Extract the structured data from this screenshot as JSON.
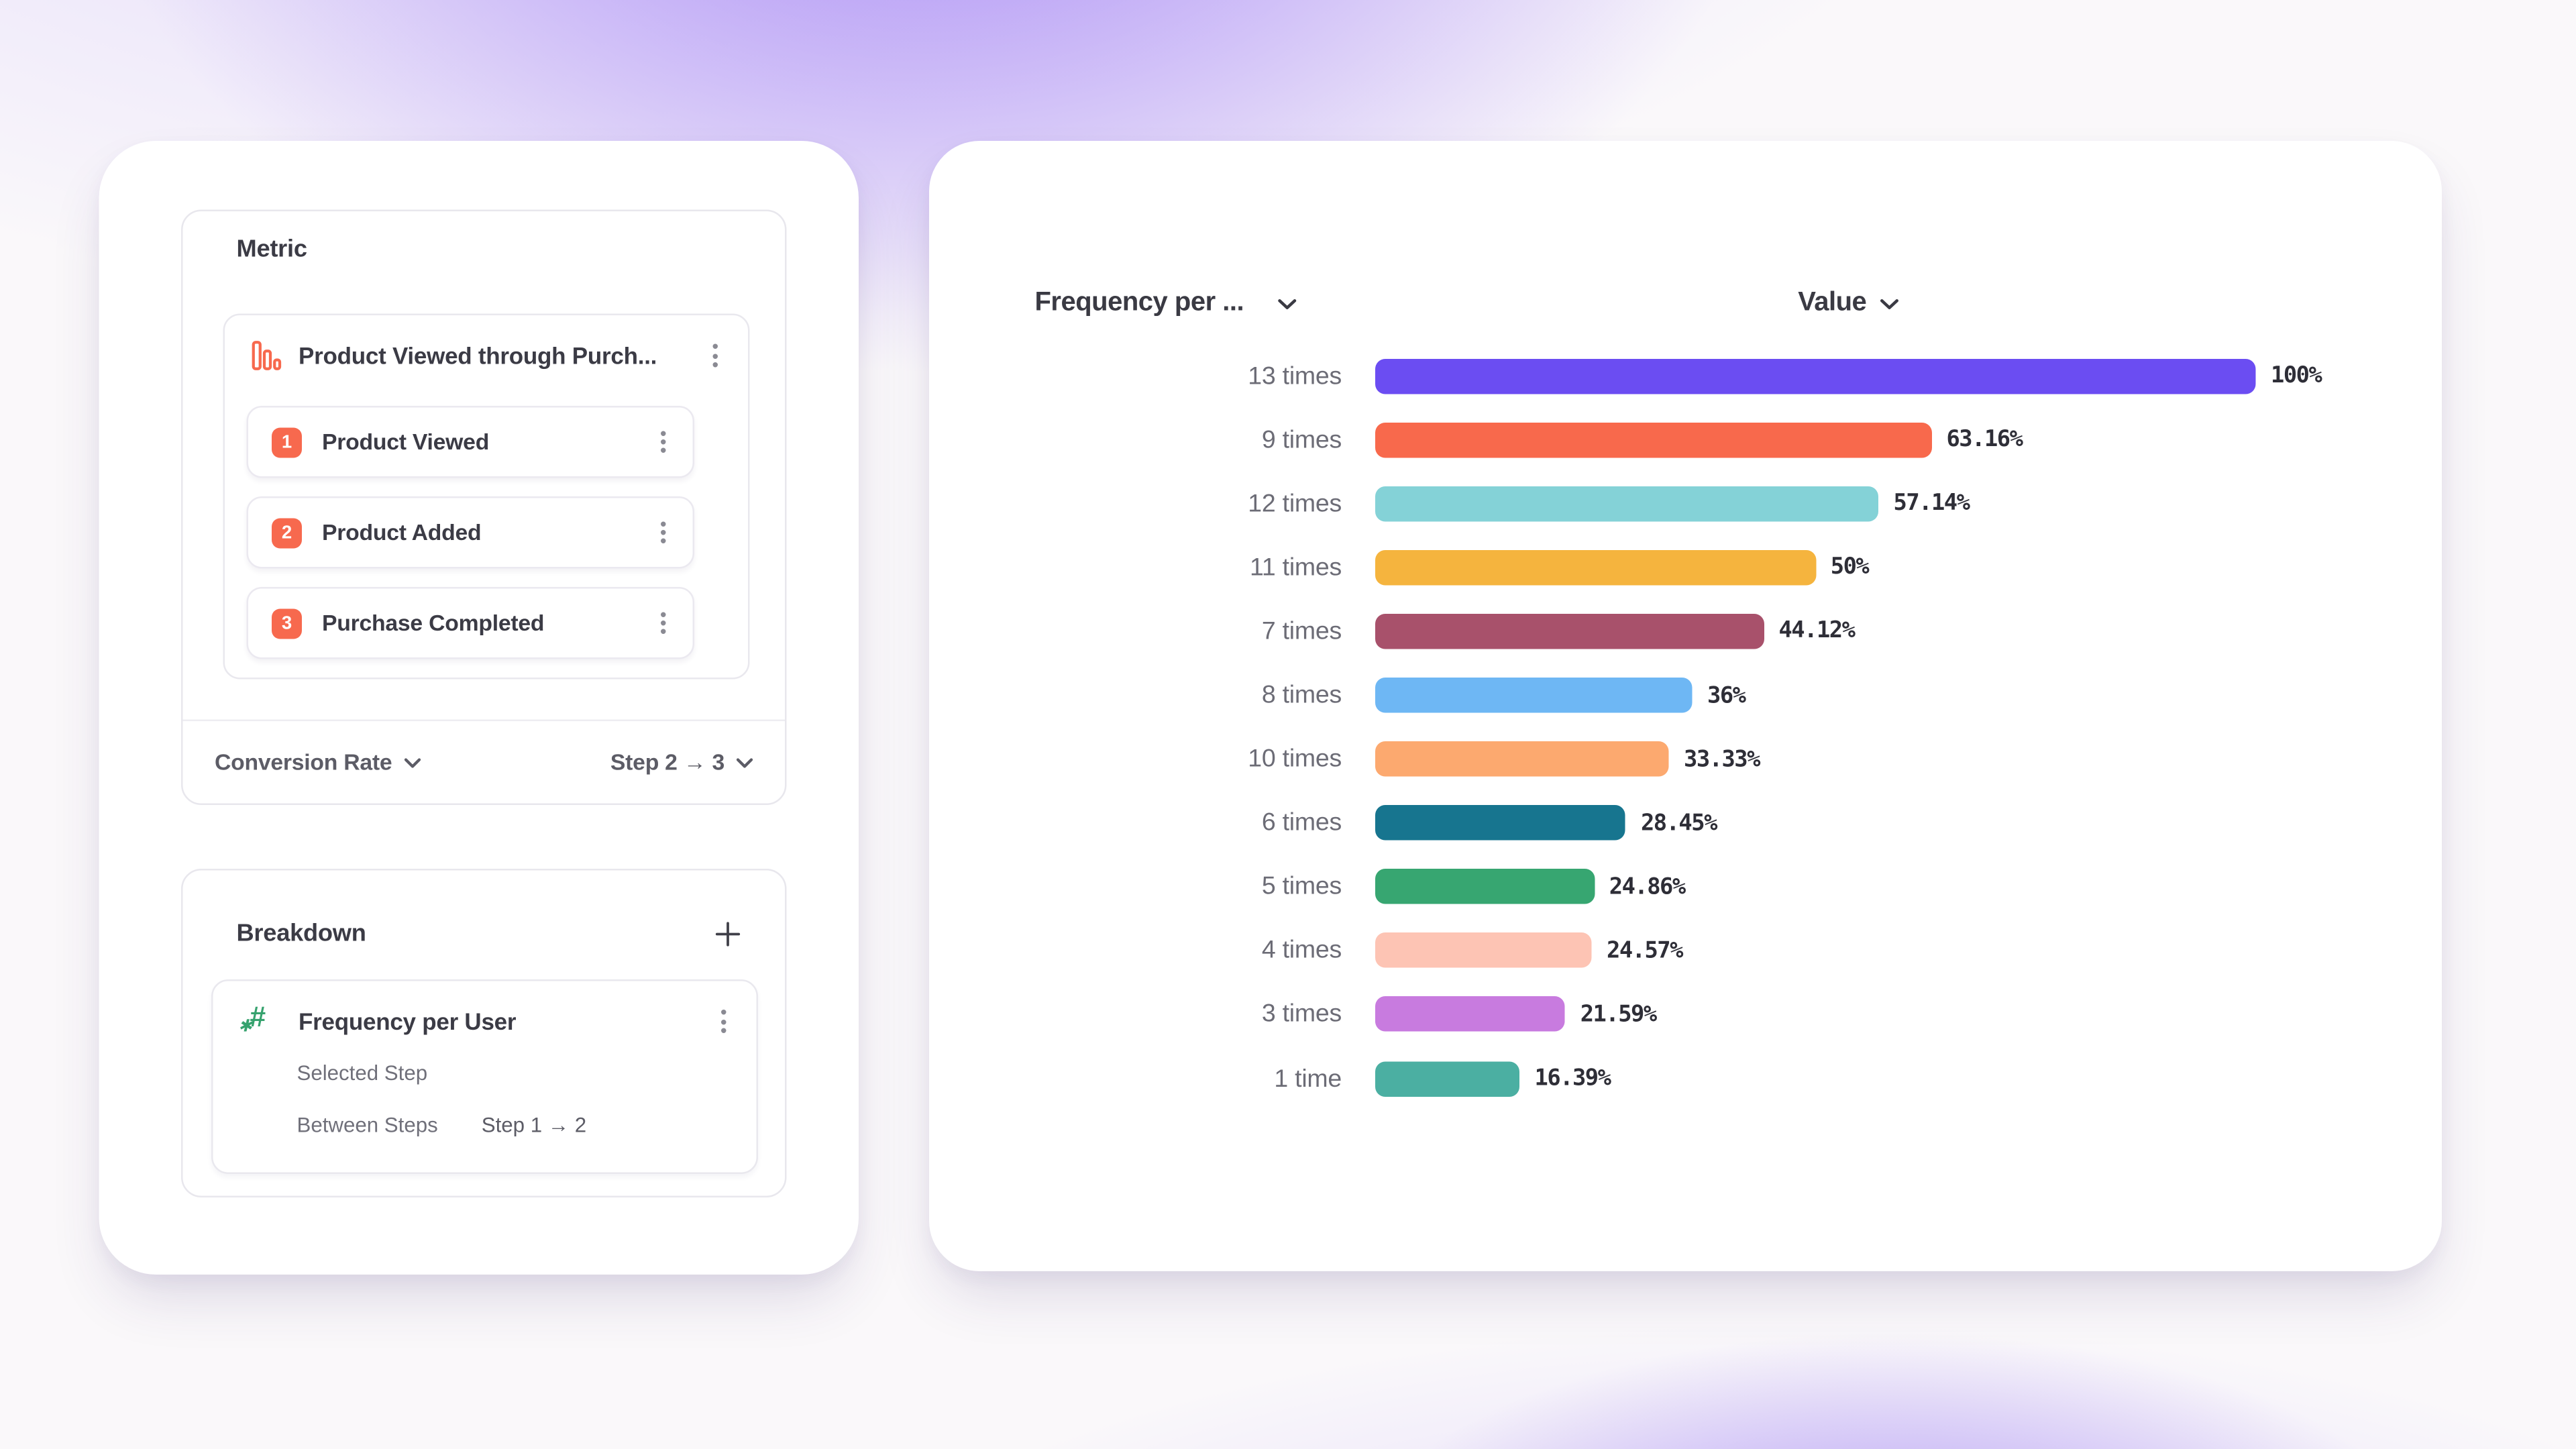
{
  "colors": {
    "accent_orange": "#f7694e",
    "icon_green": "#36a26e",
    "text_dark": "#3b3b45",
    "text_gray": "#6c6c76",
    "background_purple": "#8f68f3"
  },
  "left_panel": {
    "metric_section": {
      "title": "Metric",
      "funnel": {
        "title": "Product Viewed through Purch...",
        "icon": "funnel-bars-icon",
        "steps": [
          {
            "number": "1",
            "label": "Product Viewed"
          },
          {
            "number": "2",
            "label": "Product Added"
          },
          {
            "number": "3",
            "label": "Purchase Completed"
          }
        ]
      },
      "footer": {
        "measurement_label": "Conversion Rate",
        "step_range_label": "Step 2 → 3"
      }
    },
    "breakdown_section": {
      "title": "Breakdown",
      "add_button_icon": "plus-icon",
      "item": {
        "icon": "numeric-property-icon",
        "title": "Frequency per User",
        "rows": [
          {
            "label": "Selected Step",
            "value": ""
          },
          {
            "label": "Between Steps",
            "value": "Step 1 → 2"
          }
        ]
      }
    }
  },
  "chart_panel": {
    "x_header": "Frequency per ...",
    "value_header": "Value"
  },
  "chart_data": {
    "type": "bar",
    "orientation": "horizontal",
    "title": "",
    "xlabel": "Value",
    "ylabel": "Frequency per ...",
    "xlim": [
      0,
      100
    ],
    "grid": false,
    "legend": false,
    "categories": [
      "13 times",
      "9 times",
      "12 times",
      "11 times",
      "7 times",
      "8 times",
      "10 times",
      "6 times",
      "5 times",
      "4 times",
      "3 times",
      "1 time"
    ],
    "values": [
      100,
      63.16,
      57.14,
      50,
      44.12,
      36,
      33.33,
      28.45,
      24.86,
      24.57,
      21.59,
      16.39
    ],
    "value_labels": [
      "100%",
      "63.16%",
      "57.14%",
      "50%",
      "44.12%",
      "36%",
      "33.33%",
      "28.45%",
      "24.86%",
      "24.57%",
      "21.59%",
      "16.39%"
    ],
    "bar_colors": [
      "#6b4df2",
      "#f8694c",
      "#84d2d7",
      "#f5b43e",
      "#a8516b",
      "#6eb7f4",
      "#fca96f",
      "#17758f",
      "#37a671",
      "#fdc4b4",
      "#c87bdf",
      "#4bafa2"
    ]
  }
}
